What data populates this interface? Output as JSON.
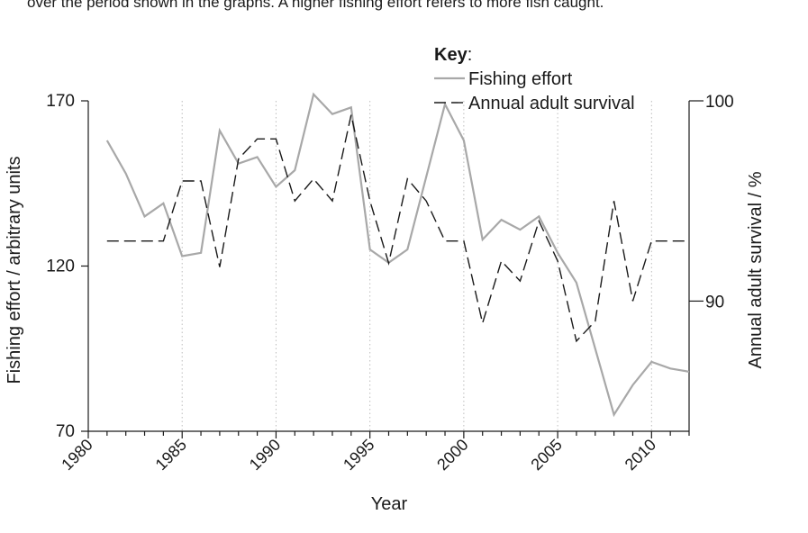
{
  "caption": "over the period shown in the graphs. A higher fishing effort refers to more fish caught.",
  "chart_data": {
    "type": "line",
    "title": "",
    "xlabel": "Year",
    "ylabel_left": "Fishing effort / arbitrary units",
    "ylabel_right": "Annual adult survival / %",
    "xlim": [
      1980,
      2012
    ],
    "ylim_left": [
      70,
      170
    ],
    "ylim_right": [
      83.5,
      100
    ],
    "x_ticks": [
      1980,
      1985,
      1990,
      1995,
      2000,
      2005,
      2010
    ],
    "x_tick_labels": [
      "1980",
      "1985",
      "1990",
      "1995",
      "2000",
      "2005",
      "2010"
    ],
    "y_left_ticks": [
      70,
      120,
      170
    ],
    "y_left_tick_labels": [
      "70",
      "120",
      "170"
    ],
    "y_right_ticks": [
      90,
      100
    ],
    "y_right_tick_labels": [
      "90",
      "100"
    ],
    "grid_x": true,
    "legend": {
      "title": "Key",
      "title_suffix": ":",
      "position": "top-center"
    },
    "series": [
      {
        "name": "Fishing effort",
        "axis": "left",
        "color": "#a8a8a8",
        "style": "solid",
        "x": [
          1981,
          1982,
          1983,
          1984,
          1985,
          1986,
          1987,
          1988,
          1989,
          1990,
          1991,
          1992,
          1993,
          1994,
          1995,
          1996,
          1997,
          1998,
          1999,
          2000,
          2001,
          2002,
          2003,
          2004,
          2005,
          2006,
          2007,
          2008,
          2009,
          2010,
          2011,
          2012
        ],
        "values": [
          158,
          148,
          135,
          139,
          123,
          124,
          161,
          151,
          153,
          144,
          149,
          172,
          166,
          168,
          125,
          121,
          125,
          147,
          169,
          158,
          128,
          134,
          131,
          135,
          124,
          115,
          95,
          75,
          84,
          91,
          89,
          88
        ]
      },
      {
        "name": "Annual adult survival",
        "axis": "right",
        "color": "#1a1a1a",
        "style": "dashed",
        "x": [
          1981,
          1982,
          1983,
          1984,
          1985,
          1986,
          1987,
          1988,
          1989,
          1990,
          1991,
          1992,
          1993,
          1994,
          1995,
          1996,
          1997,
          1998,
          1999,
          2000,
          2001,
          2002,
          2003,
          2004,
          2005,
          2006,
          2007,
          2008,
          2009,
          2010,
          2011,
          2012
        ],
        "values": [
          93,
          93,
          93,
          93,
          96,
          96,
          91.7,
          97.1,
          98.1,
          98.1,
          95,
          96.1,
          95,
          99.3,
          95,
          91.9,
          96.1,
          95,
          93,
          93,
          88.9,
          92,
          91,
          94,
          92,
          88,
          89,
          95,
          90,
          93,
          93,
          93
        ]
      }
    ]
  }
}
